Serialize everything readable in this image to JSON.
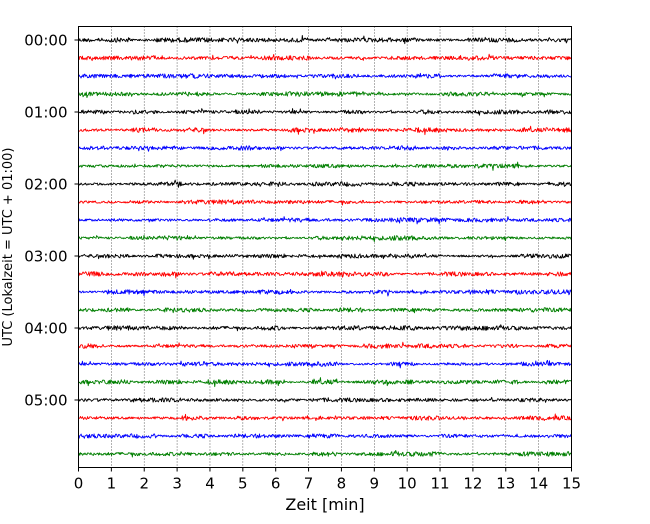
{
  "chart_data": {
    "type": "line",
    "title": "",
    "xlabel": "Zeit  [min]",
    "ylabel": "UTC (Lokalzeit = UTC + 01:00)",
    "xlim": [
      0,
      15
    ],
    "x_ticks": [
      0,
      1,
      2,
      3,
      4,
      5,
      6,
      7,
      8,
      9,
      10,
      11,
      12,
      13,
      14,
      15
    ],
    "y_tick_labels": [
      "00:00",
      "01:00",
      "02:00",
      "03:00",
      "04:00",
      "05:00"
    ],
    "grid": "vertical dotted",
    "trace_interval_minutes": 15,
    "trace_count": 24,
    "trace_colors": [
      "#000000",
      "#ff0000",
      "#0000ff",
      "#007f00"
    ],
    "series": [
      {
        "start": "00:00",
        "color": "#000000"
      },
      {
        "start": "00:15",
        "color": "#ff0000"
      },
      {
        "start": "00:30",
        "color": "#0000ff"
      },
      {
        "start": "00:45",
        "color": "#007f00"
      },
      {
        "start": "01:00",
        "color": "#000000"
      },
      {
        "start": "01:15",
        "color": "#ff0000"
      },
      {
        "start": "01:30",
        "color": "#0000ff"
      },
      {
        "start": "01:45",
        "color": "#007f00"
      },
      {
        "start": "02:00",
        "color": "#000000"
      },
      {
        "start": "02:15",
        "color": "#ff0000"
      },
      {
        "start": "02:30",
        "color": "#0000ff"
      },
      {
        "start": "02:45",
        "color": "#007f00"
      },
      {
        "start": "03:00",
        "color": "#000000"
      },
      {
        "start": "03:15",
        "color": "#ff0000"
      },
      {
        "start": "03:30",
        "color": "#0000ff"
      },
      {
        "start": "03:45",
        "color": "#007f00"
      },
      {
        "start": "04:00",
        "color": "#000000"
      },
      {
        "start": "04:15",
        "color": "#ff0000"
      },
      {
        "start": "04:30",
        "color": "#0000ff"
      },
      {
        "start": "04:45",
        "color": "#007f00"
      },
      {
        "start": "05:00",
        "color": "#000000"
      },
      {
        "start": "05:15",
        "color": "#ff0000"
      },
      {
        "start": "05:30",
        "color": "#0000ff"
      },
      {
        "start": "05:45",
        "color": "#007f00"
      }
    ]
  }
}
